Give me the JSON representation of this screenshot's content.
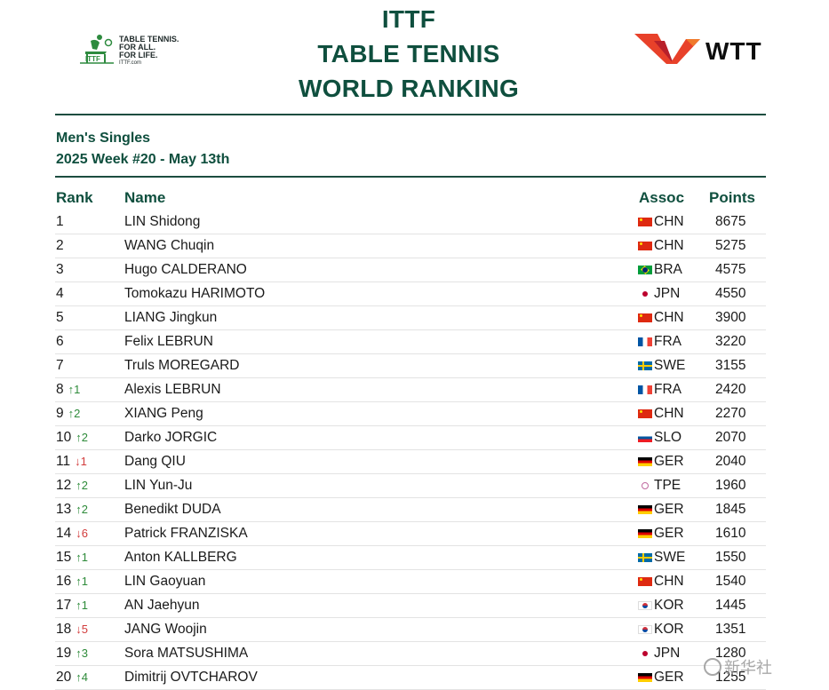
{
  "header": {
    "title_lines": [
      "ITTF",
      "TABLE TENNIS",
      "WORLD RANKING"
    ],
    "ittf_logo": {
      "icon": "ittf-table-tennis-logo",
      "tagline": [
        "TABLE TENNIS.",
        "FOR ALL.",
        "FOR LIFE."
      ],
      "url": "ITTF.com"
    },
    "wtt_logo": {
      "icon": "wtt-logo",
      "text": "WTT"
    }
  },
  "subheader": {
    "category": "Men's Singles",
    "week": "2025 Week #20 - May 13th"
  },
  "table": {
    "columns": {
      "rank": "Rank",
      "name": "Name",
      "assoc": "Assoc",
      "points": "Points"
    },
    "rows": [
      {
        "rank": "1",
        "move": "",
        "dir": "",
        "name": "LIN Shidong",
        "flag": "chn",
        "assoc": "CHN",
        "points": "8675"
      },
      {
        "rank": "2",
        "move": "",
        "dir": "",
        "name": "WANG Chuqin",
        "flag": "chn",
        "assoc": "CHN",
        "points": "5275"
      },
      {
        "rank": "3",
        "move": "",
        "dir": "",
        "name": "Hugo CALDERANO",
        "flag": "bra",
        "assoc": "BRA",
        "points": "4575"
      },
      {
        "rank": "4",
        "move": "",
        "dir": "",
        "name": "Tomokazu HARIMOTO",
        "flag": "jpn",
        "assoc": "JPN",
        "points": "4550"
      },
      {
        "rank": "5",
        "move": "",
        "dir": "",
        "name": "LIANG Jingkun",
        "flag": "chn",
        "assoc": "CHN",
        "points": "3900"
      },
      {
        "rank": "6",
        "move": "",
        "dir": "",
        "name": "Felix LEBRUN",
        "flag": "fra",
        "assoc": "FRA",
        "points": "3220"
      },
      {
        "rank": "7",
        "move": "",
        "dir": "",
        "name": "Truls MOREGARD",
        "flag": "swe",
        "assoc": "SWE",
        "points": "3155"
      },
      {
        "rank": "8",
        "move": "↑1",
        "dir": "up",
        "name": "Alexis LEBRUN",
        "flag": "fra",
        "assoc": "FRA",
        "points": "2420"
      },
      {
        "rank": "9",
        "move": "↑2",
        "dir": "up",
        "name": "XIANG Peng",
        "flag": "chn",
        "assoc": "CHN",
        "points": "2270"
      },
      {
        "rank": "10",
        "move": "↑2",
        "dir": "up",
        "name": "Darko JORGIC",
        "flag": "slo",
        "assoc": "SLO",
        "points": "2070"
      },
      {
        "rank": "11",
        "move": "↓1",
        "dir": "down",
        "name": "Dang QIU",
        "flag": "ger",
        "assoc": "GER",
        "points": "2040"
      },
      {
        "rank": "12",
        "move": "↑2",
        "dir": "up",
        "name": "LIN Yun-Ju",
        "flag": "tpe",
        "assoc": "TPE",
        "points": "1960"
      },
      {
        "rank": "13",
        "move": "↑2",
        "dir": "up",
        "name": "Benedikt DUDA",
        "flag": "ger",
        "assoc": "GER",
        "points": "1845"
      },
      {
        "rank": "14",
        "move": "↓6",
        "dir": "down",
        "name": "Patrick FRANZISKA",
        "flag": "ger",
        "assoc": "GER",
        "points": "1610"
      },
      {
        "rank": "15",
        "move": "↑1",
        "dir": "up",
        "name": "Anton KALLBERG",
        "flag": "swe",
        "assoc": "SWE",
        "points": "1550"
      },
      {
        "rank": "16",
        "move": "↑1",
        "dir": "up",
        "name": "LIN Gaoyuan",
        "flag": "chn",
        "assoc": "CHN",
        "points": "1540"
      },
      {
        "rank": "17",
        "move": "↑1",
        "dir": "up",
        "name": "AN Jaehyun",
        "flag": "kor",
        "assoc": "KOR",
        "points": "1445"
      },
      {
        "rank": "18",
        "move": "↓5",
        "dir": "down",
        "name": "JANG Woojin",
        "flag": "kor",
        "assoc": "KOR",
        "points": "1351"
      },
      {
        "rank": "19",
        "move": "↑3",
        "dir": "up",
        "name": "Sora MATSUSHIMA",
        "flag": "jpn",
        "assoc": "JPN",
        "points": "1280"
      },
      {
        "rank": "20",
        "move": "↑4",
        "dir": "up",
        "name": "Dimitrij OVTCHAROV",
        "flag": "ger",
        "assoc": "GER",
        "points": "1255"
      }
    ]
  },
  "watermark": {
    "icon": "xinhua-weibo-icon",
    "text": "新华社"
  },
  "colors": {
    "brand_green": "#0f4f3e",
    "up": "#2e8b3a",
    "down": "#d23c3c",
    "wtt_red": "#e8412a"
  }
}
